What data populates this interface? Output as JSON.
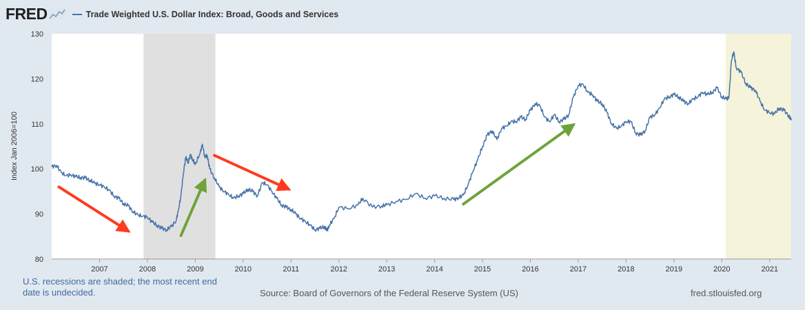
{
  "brand": {
    "logo_text": "FRED",
    "logo_icon": "line-chart-icon"
  },
  "legend": {
    "label": "Trade Weighted U.S. Dollar Index: Broad, Goods and Services",
    "color": "#4572a7"
  },
  "footer": {
    "note": "U.S. recessions are shaded; the most recent end date is undecided.",
    "source": "Source: Board of Governors of the Federal Reserve System (US)",
    "site": "fred.stlouisfed.org"
  },
  "colors": {
    "line": "#4572a7",
    "recession": "#e0e0e0",
    "recent_recession": "#f5f3d9",
    "red_arrow": "#ff3b1f",
    "green_arrow": "#6ea33b"
  },
  "chart_data": {
    "type": "line",
    "ylabel": "Index Jan 2006=100",
    "xlim": [
      2006.0,
      2021.45
    ],
    "ylim": [
      80,
      130
    ],
    "yticks": [
      80,
      90,
      100,
      110,
      120,
      130
    ],
    "xticks": [
      "2007",
      "2008",
      "2009",
      "2010",
      "2011",
      "2012",
      "2013",
      "2014",
      "2015",
      "2016",
      "2017",
      "2018",
      "2019",
      "2020",
      "2021"
    ],
    "grid": false,
    "recessions": [
      [
        2007.92,
        2009.42
      ],
      [
        2020.08,
        2021.45
      ]
    ],
    "series": [
      {
        "name": "Trade Weighted U.S. Dollar Index: Broad, Goods and Services",
        "x": [
          2006.0,
          2006.1,
          2006.2,
          2006.3,
          2006.4,
          2006.5,
          2006.6,
          2006.7,
          2006.8,
          2006.9,
          2007.0,
          2007.1,
          2007.2,
          2007.3,
          2007.4,
          2007.5,
          2007.6,
          2007.7,
          2007.8,
          2007.9,
          2008.0,
          2008.1,
          2008.2,
          2008.3,
          2008.4,
          2008.5,
          2008.6,
          2008.65,
          2008.7,
          2008.75,
          2008.8,
          2008.85,
          2008.9,
          2008.95,
          2009.0,
          2009.1,
          2009.15,
          2009.2,
          2009.25,
          2009.3,
          2009.4,
          2009.5,
          2009.6,
          2009.7,
          2009.8,
          2009.9,
          2010.0,
          2010.1,
          2010.2,
          2010.3,
          2010.4,
          2010.5,
          2010.6,
          2010.7,
          2010.8,
          2010.9,
          2011.0,
          2011.1,
          2011.2,
          2011.3,
          2011.4,
          2011.5,
          2011.6,
          2011.7,
          2011.75,
          2011.8,
          2011.9,
          2012.0,
          2012.2,
          2012.4,
          2012.5,
          2012.7,
          2012.9,
          2013.0,
          2013.2,
          2013.4,
          2013.6,
          2013.8,
          2014.0,
          2014.2,
          2014.4,
          2014.5,
          2014.6,
          2014.7,
          2014.8,
          2014.9,
          2015.0,
          2015.1,
          2015.2,
          2015.3,
          2015.4,
          2015.5,
          2015.6,
          2015.7,
          2015.8,
          2015.9,
          2016.0,
          2016.1,
          2016.2,
          2016.3,
          2016.4,
          2016.5,
          2016.6,
          2016.7,
          2016.8,
          2016.9,
          2017.0,
          2017.1,
          2017.2,
          2017.3,
          2017.4,
          2017.5,
          2017.6,
          2017.7,
          2017.8,
          2017.9,
          2018.0,
          2018.1,
          2018.2,
          2018.3,
          2018.4,
          2018.5,
          2018.6,
          2018.7,
          2018.8,
          2018.9,
          2019.0,
          2019.1,
          2019.2,
          2019.3,
          2019.4,
          2019.5,
          2019.6,
          2019.7,
          2019.8,
          2019.9,
          2020.0,
          2020.1,
          2020.15,
          2020.2,
          2020.25,
          2020.3,
          2020.4,
          2020.5,
          2020.6,
          2020.7,
          2020.8,
          2020.9,
          2021.0,
          2021.1,
          2021.2,
          2021.3,
          2021.4,
          2021.45
        ],
        "values": [
          100.5,
          100.8,
          99.2,
          98.5,
          98.7,
          98.3,
          98.1,
          98.0,
          97.5,
          96.8,
          96.5,
          96.0,
          95.3,
          94.0,
          93.5,
          92.3,
          91.8,
          90.5,
          89.8,
          89.5,
          89.3,
          88.2,
          87.5,
          86.8,
          86.5,
          87.2,
          88.5,
          91.0,
          94.0,
          99.0,
          102.5,
          101.5,
          103.0,
          102.0,
          101.0,
          103.5,
          105.5,
          102.5,
          103.0,
          100.0,
          98.0,
          96.0,
          95.0,
          94.3,
          93.5,
          94.0,
          94.5,
          95.5,
          95.0,
          94.0,
          97.0,
          96.5,
          95.0,
          93.5,
          92.0,
          91.5,
          91.0,
          90.0,
          89.0,
          88.3,
          87.5,
          86.5,
          86.8,
          87.2,
          86.3,
          87.5,
          89.0,
          91.5,
          91.2,
          92.0,
          93.5,
          91.5,
          91.8,
          92.0,
          92.8,
          93.2,
          94.5,
          93.5,
          94.0,
          93.5,
          93.2,
          93.6,
          94.2,
          96.5,
          99.5,
          102.0,
          105.0,
          107.5,
          108.5,
          106.5,
          109.0,
          109.5,
          110.5,
          110.5,
          111.5,
          111.0,
          113.0,
          114.5,
          114.0,
          111.5,
          110.5,
          112.0,
          110.5,
          111.0,
          112.0,
          116.0,
          118.5,
          118.8,
          117.0,
          116.5,
          115.0,
          114.5,
          112.5,
          110.0,
          109.0,
          109.5,
          110.5,
          110.5,
          108.0,
          107.5,
          108.5,
          111.5,
          112.0,
          113.5,
          115.5,
          116.0,
          116.5,
          116.0,
          115.0,
          114.5,
          115.5,
          116.0,
          117.0,
          116.5,
          117.0,
          118.0,
          116.0,
          115.5,
          116.0,
          124.0,
          126.0,
          122.5,
          121.5,
          119.0,
          118.0,
          117.5,
          115.0,
          113.0,
          112.5,
          112.2,
          113.5,
          113.0,
          111.8,
          110.8
        ]
      }
    ],
    "annotations": [
      {
        "type": "arrow",
        "color": "red",
        "from": [
          2006.15,
          96.0
        ],
        "to": [
          2007.6,
          86.2
        ]
      },
      {
        "type": "arrow",
        "color": "green",
        "from": [
          2008.7,
          85.2
        ],
        "to": [
          2009.2,
          97.5
        ]
      },
      {
        "type": "arrow",
        "color": "red",
        "from": [
          2009.4,
          103.0
        ],
        "to": [
          2010.95,
          95.5
        ]
      },
      {
        "type": "arrow",
        "color": "green",
        "from": [
          2014.6,
          92.2
        ],
        "to": [
          2016.9,
          109.8
        ]
      }
    ]
  }
}
